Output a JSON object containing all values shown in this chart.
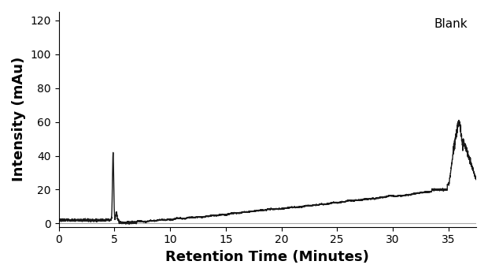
{
  "title": "Blank",
  "xlabel": "Retention Time (Minutes)",
  "ylabel": "Intensity (mAu)",
  "xlim": [
    0,
    37.5
  ],
  "ylim": [
    -2,
    125
  ],
  "xticks": [
    0,
    5,
    10,
    15,
    20,
    25,
    30,
    35
  ],
  "yticks": [
    0,
    20,
    40,
    60,
    80,
    100,
    120
  ],
  "line_color": "#1a1a1a",
  "line_width": 1.0,
  "background_color": "#ffffff",
  "hline_y": 0,
  "hline_color": "#aaaaaa",
  "hline_linewidth": 0.8,
  "label_fontsize": 13,
  "title_fontsize": 11,
  "tick_fontsize": 10
}
